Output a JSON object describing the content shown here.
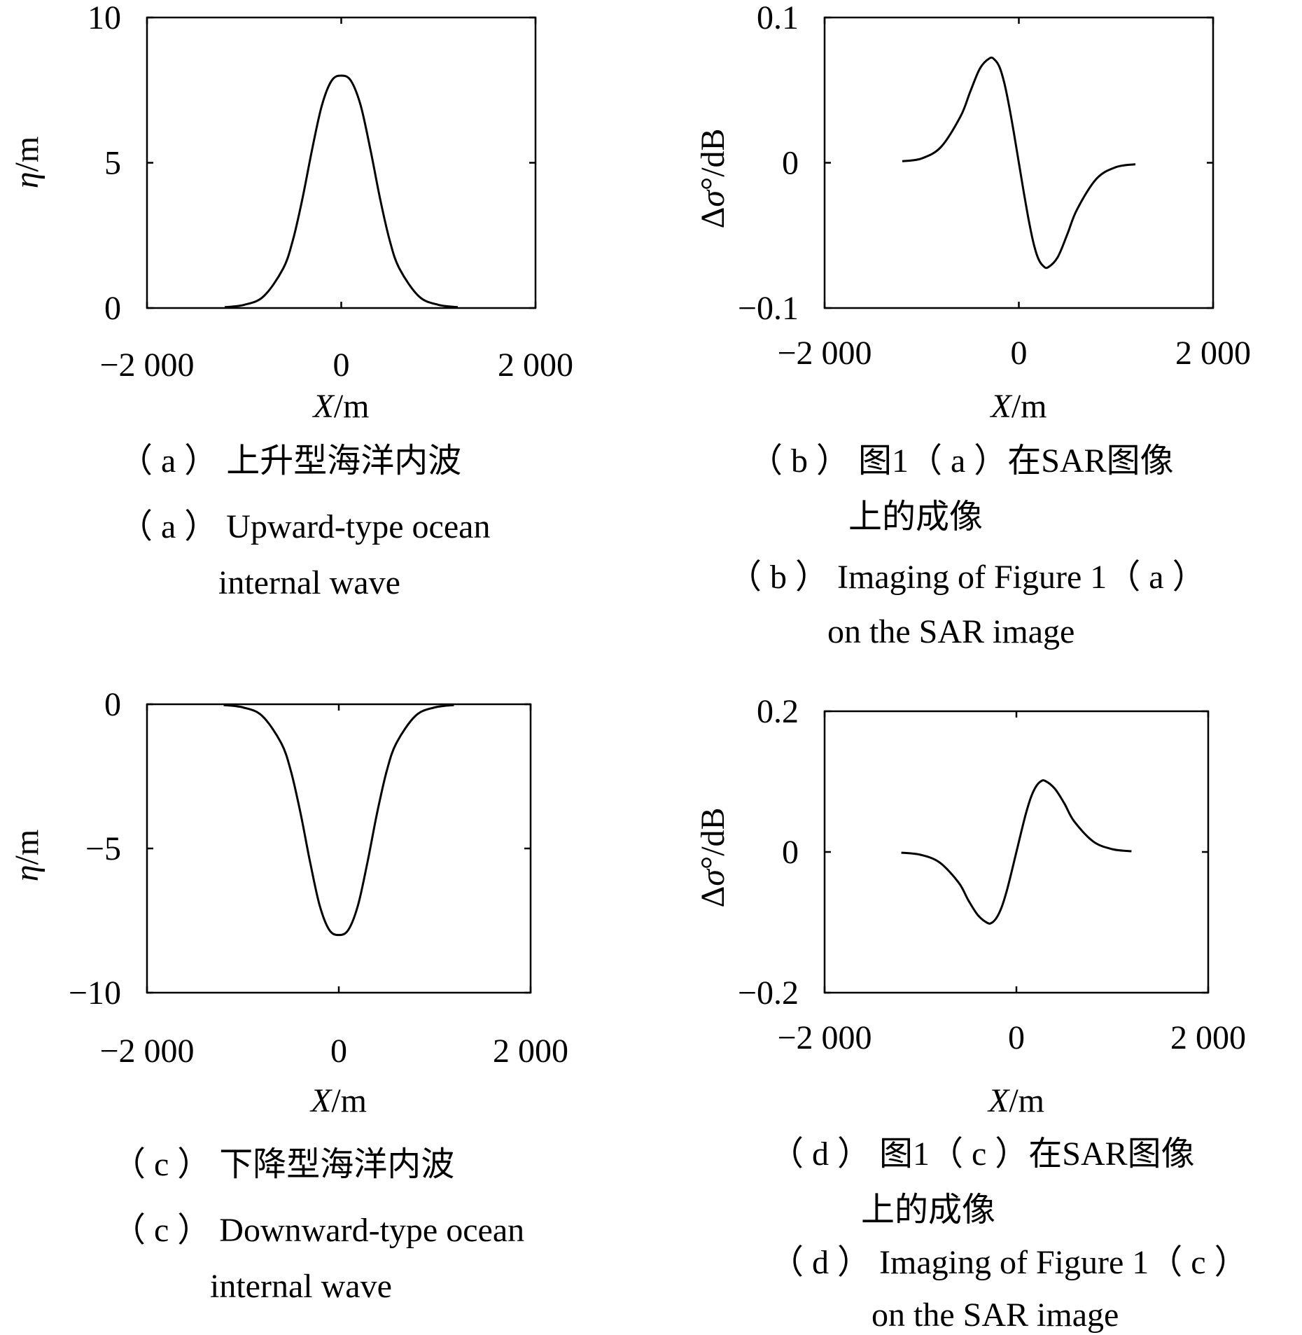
{
  "chart_data": [
    {
      "panel": "a",
      "type": "line",
      "xlabel": "X/m",
      "ylabel": "η/m",
      "xlim": [
        -2000,
        2000
      ],
      "ylim": [
        0,
        10
      ],
      "xticks": [
        -2000,
        0,
        2000
      ],
      "xtick_labels": [
        "−2 000",
        "0",
        "2 000"
      ],
      "yticks": [
        0,
        5,
        10
      ],
      "ytick_labels": [
        "0",
        "5",
        "10"
      ],
      "grid": false,
      "series": [
        {
          "x": [
            -1200,
            -1000,
            -800,
            -600,
            -500,
            -400,
            -300,
            -200,
            -100,
            0,
            100,
            200,
            300,
            400,
            500,
            600,
            800,
            1000,
            1200
          ],
          "y": [
            0.03,
            0.11,
            0.4,
            1.35,
            2.31,
            3.76,
            5.46,
            6.97,
            7.82,
            8.0,
            7.82,
            6.97,
            5.46,
            3.76,
            2.31,
            1.35,
            0.4,
            0.11,
            0.03
          ]
        }
      ],
      "caption_cn": [
        "（ a ） 上升型海洋内波"
      ],
      "caption_en": [
        "（ a ） Upward-type ocean",
        "internal wave"
      ]
    },
    {
      "panel": "b",
      "type": "line",
      "xlabel": "X/m",
      "ylabel": "Δσ°/dB",
      "xlim": [
        -2000,
        2000
      ],
      "ylim": [
        -0.1,
        0.1
      ],
      "xticks": [
        -2000,
        0,
        2000
      ],
      "xtick_labels": [
        "−2 000",
        "0",
        "2 000"
      ],
      "yticks": [
        -0.1,
        0,
        0.1
      ],
      "ytick_labels": [
        "−0.1",
        "0",
        "0.1"
      ],
      "grid": false,
      "series": [
        {
          "x": [
            -1200,
            -1000,
            -800,
            -600,
            -500,
            -400,
            -300,
            -250,
            -200,
            -150,
            -100,
            -50,
            0,
            50,
            100,
            150,
            200,
            250,
            300,
            400,
            500,
            600,
            800,
            1000,
            1200
          ],
          "y": [
            0.001,
            0.003,
            0.011,
            0.032,
            0.049,
            0.065,
            0.072,
            0.071,
            0.066,
            0.055,
            0.039,
            0.02,
            0.0,
            -0.02,
            -0.039,
            -0.055,
            -0.066,
            -0.071,
            -0.072,
            -0.065,
            -0.049,
            -0.032,
            -0.011,
            -0.003,
            -0.001
          ]
        }
      ],
      "caption_cn": [
        "（ b ） 图1（ a ）在SAR图像",
        "上的成像"
      ],
      "caption_en": [
        "（ b ） Imaging of Figure 1（ a ）",
        "on the SAR image"
      ]
    },
    {
      "panel": "c",
      "type": "line",
      "xlabel": "X/m",
      "ylabel": "η/m",
      "xlim": [
        -2000,
        2000
      ],
      "ylim": [
        -10,
        0
      ],
      "xticks": [
        -2000,
        0,
        2000
      ],
      "xtick_labels": [
        "−2 000",
        "0",
        "2 000"
      ],
      "yticks": [
        -10,
        -5,
        0
      ],
      "ytick_labels": [
        "−10",
        "−5",
        "0"
      ],
      "grid": false,
      "series": [
        {
          "x": [
            -1200,
            -1000,
            -800,
            -600,
            -500,
            -400,
            -300,
            -200,
            -100,
            0,
            100,
            200,
            300,
            400,
            500,
            600,
            800,
            1000,
            1200
          ],
          "y": [
            -0.03,
            -0.11,
            -0.4,
            -1.35,
            -2.31,
            -3.76,
            -5.46,
            -6.97,
            -7.82,
            -8.0,
            -7.82,
            -6.97,
            -5.46,
            -3.76,
            -2.31,
            -1.35,
            -0.4,
            -0.11,
            -0.03
          ]
        }
      ],
      "caption_cn": [
        "（ c ） 下降型海洋内波"
      ],
      "caption_en": [
        "（ c ） Downward-type ocean",
        "internal wave"
      ]
    },
    {
      "panel": "d",
      "type": "line",
      "xlabel": "X/m",
      "ylabel": "Δσ°/dB",
      "xlim": [
        -2000,
        2000
      ],
      "ylim": [
        -0.2,
        0.2
      ],
      "xticks": [
        -2000,
        0,
        2000
      ],
      "xtick_labels": [
        "−2 000",
        "0",
        "2 000"
      ],
      "yticks": [
        -0.2,
        0,
        0.2
      ],
      "ytick_labels": [
        "−0.2",
        "0",
        "0.2"
      ],
      "grid": false,
      "series": [
        {
          "x": [
            -1200,
            -1000,
            -800,
            -600,
            -500,
            -400,
            -300,
            -250,
            -200,
            -150,
            -100,
            -50,
            0,
            50,
            100,
            150,
            200,
            250,
            300,
            400,
            500,
            600,
            800,
            1000,
            1200
          ],
          "y": [
            -0.001,
            -0.004,
            -0.015,
            -0.044,
            -0.069,
            -0.09,
            -0.101,
            -0.1,
            -0.092,
            -0.077,
            -0.055,
            -0.028,
            0.0,
            0.028,
            0.055,
            0.077,
            0.092,
            0.1,
            0.101,
            0.09,
            0.069,
            0.044,
            0.015,
            0.004,
            0.001
          ]
        }
      ],
      "caption_cn": [
        "（ d ） 图1（ c ）在SAR图像",
        "上的成像"
      ],
      "caption_en": [
        "（ d ） Imaging of Figure 1（ c ）",
        "on the SAR image"
      ]
    }
  ]
}
